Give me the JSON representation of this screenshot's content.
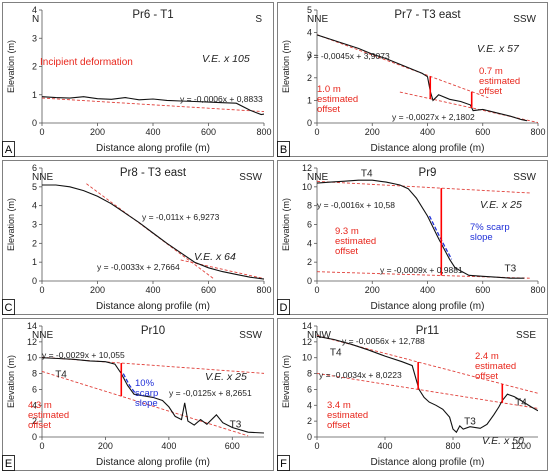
{
  "colors": {
    "profile": "#111111",
    "fit_line": "#e0403a",
    "offset": "#ff0000",
    "annotation": "#e8261c",
    "slope": "#1f2fd8",
    "axis": "#555555",
    "text": "#222222",
    "border": "#808080"
  },
  "chart_data": [
    {
      "id": "A",
      "type": "line",
      "panel_label": "A",
      "title": "Pr6 - T1",
      "xlabel": "Distance along profile (m)",
      "ylabel": "Elevation (m)",
      "xlim": [
        0,
        800
      ],
      "ylim": [
        0,
        4
      ],
      "xticks": [
        0,
        200,
        400,
        600,
        800
      ],
      "yticks": [
        0,
        1,
        2,
        3,
        4
      ],
      "dir_left": "N",
      "dir_right": "S",
      "ve": "V.E. x 105",
      "series": [
        {
          "values": [
            [
              0,
              0.93
            ],
            [
              50,
              0.9
            ],
            [
              100,
              0.88
            ],
            [
              150,
              0.93
            ],
            [
              200,
              0.86
            ],
            [
              250,
              0.84
            ],
            [
              300,
              0.9
            ],
            [
              350,
              0.82
            ],
            [
              400,
              0.85
            ],
            [
              450,
              0.8
            ],
            [
              500,
              0.78
            ],
            [
              550,
              0.76
            ],
            [
              600,
              0.74
            ],
            [
              650,
              0.72
            ],
            [
              700,
              0.7
            ],
            [
              750,
              0.45
            ],
            [
              790,
              0.3
            ],
            [
              820,
              0.35
            ]
          ]
        }
      ],
      "fits": [
        {
          "equation": "y = -0,0006x + 0,8833",
          "slope": -0.0006,
          "intercept": 0.8833,
          "x_range": [
            0,
            820
          ]
        }
      ],
      "annotations": [
        {
          "text": "Incipient deformation"
        }
      ]
    },
    {
      "id": "B",
      "type": "line",
      "panel_label": "B",
      "title": "Pr7 - T3 east",
      "xlabel": "Distance along profile (m)",
      "ylabel": "Elevation (m)",
      "xlim": [
        0,
        800
      ],
      "ylim": [
        0,
        5
      ],
      "xticks": [
        0,
        200,
        400,
        600,
        800
      ],
      "yticks": [
        0,
        1,
        2,
        3,
        4,
        5
      ],
      "dir_left": "NNE",
      "dir_right": "SSW",
      "ve": "V.E. x 57",
      "series": [
        {
          "values": [
            [
              0,
              3.9
            ],
            [
              50,
              3.7
            ],
            [
              100,
              3.5
            ],
            [
              150,
              3.3
            ],
            [
              200,
              3.05
            ],
            [
              250,
              2.85
            ],
            [
              300,
              2.6
            ],
            [
              350,
              2.35
            ],
            [
              380,
              2.2
            ],
            [
              400,
              2.05
            ],
            [
              410,
              1.4
            ],
            [
              420,
              1.0
            ],
            [
              440,
              1.25
            ],
            [
              480,
              1.05
            ],
            [
              520,
              0.95
            ],
            [
              555,
              0.8
            ],
            [
              565,
              0.55
            ],
            [
              600,
              0.6
            ],
            [
              650,
              0.45
            ],
            [
              700,
              0.3
            ],
            [
              740,
              0.15
            ],
            [
              760,
              0.1
            ]
          ]
        }
      ],
      "fits": [
        {
          "equation": "y = -0,0045x + 3,9073",
          "slope": -0.0045,
          "intercept": 3.9073,
          "x_range": [
            0,
            620
          ]
        },
        {
          "equation": "y = -0,0027x + 2,1802",
          "slope": -0.0027,
          "intercept": 2.1802,
          "x_range": [
            300,
            800
          ]
        }
      ],
      "offsets": [
        {
          "x": 410,
          "text": "1.0 m estimated offset"
        },
        {
          "x": 560,
          "text": "0.7 m estimated offset"
        }
      ]
    },
    {
      "id": "C",
      "type": "line",
      "panel_label": "C",
      "title": "Pr8 - T3 east",
      "xlabel": "Distance along profile (m)",
      "ylabel": "Elevation (m)",
      "xlim": [
        0,
        800
      ],
      "ylim": [
        0,
        6
      ],
      "xticks": [
        0,
        200,
        400,
        600,
        800
      ],
      "yticks": [
        0,
        1,
        2,
        3,
        4,
        5,
        6
      ],
      "dir_left": "NNE",
      "dir_right": "SSW",
      "ve": "V.E. x 64",
      "series": [
        {
          "values": [
            [
              0,
              5.1
            ],
            [
              50,
              5.1
            ],
            [
              100,
              5.0
            ],
            [
              150,
              4.8
            ],
            [
              200,
              4.5
            ],
            [
              250,
              4.1
            ],
            [
              300,
              3.6
            ],
            [
              350,
              3.1
            ],
            [
              400,
              2.55
            ],
            [
              450,
              2.0
            ],
            [
              500,
              1.5
            ],
            [
              550,
              1.0
            ],
            [
              600,
              0.7
            ],
            [
              650,
              0.5
            ],
            [
              700,
              0.35
            ],
            [
              750,
              0.2
            ],
            [
              800,
              0.1
            ],
            [
              820,
              0.05
            ]
          ]
        }
      ],
      "fits": [
        {
          "equation": "y = -0,011x + 6,9273",
          "slope": -0.011,
          "intercept": 6.9273,
          "x_range": [
            160,
            620
          ]
        },
        {
          "equation": "y = -0,0033x + 2,7664",
          "slope": -0.0033,
          "intercept": 2.7664,
          "x_range": [
            500,
            820
          ]
        }
      ]
    },
    {
      "id": "D",
      "type": "line",
      "panel_label": "D",
      "title": "Pr9",
      "xlabel": "Distance along profile (m)",
      "ylabel": "Elevation (m)",
      "xlim": [
        0,
        800
      ],
      "ylim": [
        0,
        12
      ],
      "xticks": [
        0,
        200,
        400,
        600,
        800
      ],
      "yticks": [
        0,
        2,
        4,
        6,
        8,
        10,
        12
      ],
      "dir_left": "NNE",
      "dir_right": "SSW",
      "ve": "V.E. x 25",
      "terraces": [
        {
          "text": "T4",
          "x": 180,
          "y": 11.1
        },
        {
          "text": "T3",
          "x": 700,
          "y": 1.0
        }
      ],
      "series": [
        {
          "values": [
            [
              0,
              10.4
            ],
            [
              50,
              10.5
            ],
            [
              100,
              10.6
            ],
            [
              150,
              10.7
            ],
            [
              200,
              10.7
            ],
            [
              250,
              10.5
            ],
            [
              300,
              10.2
            ],
            [
              330,
              9.8
            ],
            [
              360,
              8.8
            ],
            [
              400,
              6.9
            ],
            [
              440,
              4.5
            ],
            [
              480,
              2.3
            ],
            [
              500,
              1.4
            ],
            [
              550,
              0.6
            ],
            [
              600,
              0.5
            ],
            [
              650,
              0.4
            ],
            [
              700,
              0.3
            ],
            [
              750,
              0.3
            ]
          ]
        }
      ],
      "fits": [
        {
          "equation": "y = -0,0016x + 10,58",
          "slope": -0.0016,
          "intercept": 10.58,
          "x_range": [
            0,
            770
          ]
        },
        {
          "equation": "y = -0,0009x + 0,9881",
          "slope": -0.0009,
          "intercept": 0.9881,
          "x_range": [
            0,
            770
          ]
        }
      ],
      "offsets": [
        {
          "x": 450,
          "text": "9.3 m estimated offset"
        }
      ],
      "scarp": {
        "text": "7% scarp slope",
        "x0": 390,
        "x1": 490
      }
    },
    {
      "id": "E",
      "type": "line",
      "panel_label": "E",
      "title": "Pr10",
      "xlabel": "Distance along profile (m)",
      "ylabel": "Elevation (m)",
      "xlim": [
        0,
        700
      ],
      "ylim": [
        0,
        14
      ],
      "xticks": [
        0,
        200,
        400,
        600
      ],
      "yticks": [
        0,
        2,
        4,
        6,
        8,
        10,
        12,
        14
      ],
      "dir_left": "NNE",
      "dir_right": "SSW",
      "ve": "V.E. x 25",
      "terraces": [
        {
          "text": "T4",
          "x": 60,
          "y": 7.5
        },
        {
          "text": "T3",
          "x": 610,
          "y": 1.2
        }
      ],
      "series": [
        {
          "values": [
            [
              0,
              10.0
            ],
            [
              50,
              9.9
            ],
            [
              100,
              9.8
            ],
            [
              150,
              9.6
            ],
            [
              200,
              9.5
            ],
            [
              230,
              9.2
            ],
            [
              250,
              8.0
            ],
            [
              270,
              6.5
            ],
            [
              290,
              5.4
            ],
            [
              320,
              5.2
            ],
            [
              350,
              5.0
            ],
            [
              380,
              4.6
            ],
            [
              400,
              3.8
            ],
            [
              420,
              2.6
            ],
            [
              440,
              2.2
            ],
            [
              450,
              4.3
            ],
            [
              460,
              2.0
            ],
            [
              480,
              1.5
            ],
            [
              500,
              2.2
            ],
            [
              520,
              1.6
            ],
            [
              550,
              2.8
            ],
            [
              570,
              1.8
            ],
            [
              600,
              1.2
            ],
            [
              650,
              0.6
            ],
            [
              700,
              0.5
            ]
          ]
        }
      ],
      "fits": [
        {
          "equation": "y = -0,0029x + 10,055",
          "slope": -0.0029,
          "intercept": 10.055,
          "x_range": [
            0,
            700
          ]
        },
        {
          "equation": "y = -0,0125x + 8,2651",
          "slope": -0.0125,
          "intercept": 8.2651,
          "x_range": [
            0,
            650
          ]
        }
      ],
      "offsets": [
        {
          "x": 250,
          "text": "4.3 m estimated offset"
        }
      ],
      "scarp": {
        "text": "10% scarp slope",
        "x0": 235,
        "x1": 290
      }
    },
    {
      "id": "F",
      "type": "line",
      "panel_label": "F",
      "title": "Pr11",
      "xlabel": "Distance along profile (m)",
      "ylabel": "Elevation (m)",
      "xlim": [
        0,
        1300
      ],
      "ylim": [
        0,
        14
      ],
      "xticks": [
        0,
        400,
        800,
        1200
      ],
      "yticks": [
        0,
        2,
        4,
        6,
        8,
        10,
        12,
        14
      ],
      "dir_left": "NNW",
      "dir_right": "SSE",
      "ve": "V.E. x 50",
      "terraces": [
        {
          "text": "T4",
          "x": 110,
          "y": 10.3
        },
        {
          "text": "T3",
          "x": 900,
          "y": 1.6
        },
        {
          "text": "T4",
          "x": 1200,
          "y": 4.0
        }
      ],
      "series": [
        {
          "values": [
            [
              0,
              12.7
            ],
            [
              100,
              12.3
            ],
            [
              200,
              11.7
            ],
            [
              300,
              11.0
            ],
            [
              400,
              10.2
            ],
            [
              500,
              9.5
            ],
            [
              560,
              9.0
            ],
            [
              600,
              6.0
            ],
            [
              630,
              5.0
            ],
            [
              660,
              4.4
            ],
            [
              700,
              4.0
            ],
            [
              740,
              3.5
            ],
            [
              780,
              2.5
            ],
            [
              800,
              1.0
            ],
            [
              820,
              0.6
            ],
            [
              840,
              1.4
            ],
            [
              860,
              1.0
            ],
            [
              900,
              1.3
            ],
            [
              960,
              1.1
            ],
            [
              1000,
              1.6
            ],
            [
              1040,
              2.8
            ],
            [
              1070,
              3.8
            ],
            [
              1090,
              4.6
            ],
            [
              1120,
              5.4
            ],
            [
              1160,
              5.1
            ],
            [
              1200,
              4.6
            ],
            [
              1260,
              3.8
            ],
            [
              1300,
              3.3
            ]
          ]
        }
      ],
      "fits": [
        {
          "equation": "y = -0,0056x + 12,788",
          "slope": -0.0056,
          "intercept": 12.788,
          "x_range": [
            0,
            1300
          ]
        },
        {
          "equation": "y = -0,0034x + 8,0223",
          "slope": -0.0034,
          "intercept": 8.0223,
          "x_range": [
            0,
            1300
          ]
        }
      ],
      "offsets": [
        {
          "x": 595,
          "text": "3.4 m estimated offset"
        },
        {
          "x": 1090,
          "text": "2.4 m estimated offset"
        }
      ]
    }
  ]
}
